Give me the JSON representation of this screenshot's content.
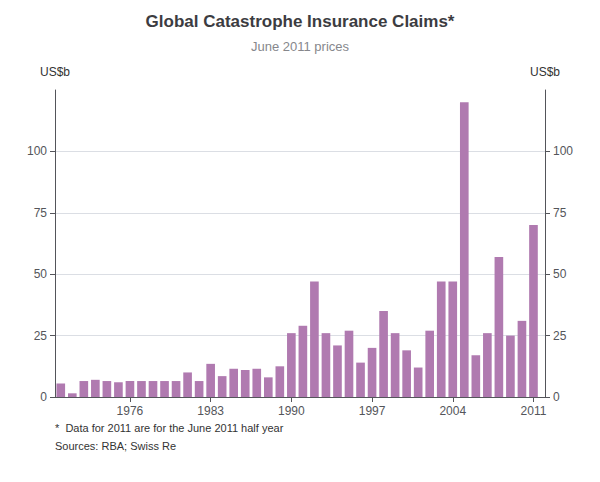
{
  "chart_data": {
    "type": "bar",
    "title": "Global Catastrophe Insurance Claims*",
    "subtitle": "June 2011 prices",
    "ylabel": "US$b",
    "y2label": "US$b",
    "annotations": [
      "*  Data for 2011 are for the June 2011 half year",
      "Sources: RBA; Swiss Re"
    ],
    "x": [
      1970,
      1971,
      1972,
      1973,
      1974,
      1975,
      1976,
      1977,
      1978,
      1979,
      1980,
      1981,
      1982,
      1983,
      1984,
      1985,
      1986,
      1987,
      1988,
      1989,
      1990,
      1991,
      1992,
      1993,
      1994,
      1995,
      1996,
      1997,
      1998,
      1999,
      2000,
      2001,
      2002,
      2003,
      2004,
      2005,
      2006,
      2007,
      2008,
      2009,
      2010,
      2011
    ],
    "values": [
      5.5,
      1.5,
      6.5,
      7.0,
      6.5,
      6.0,
      6.5,
      6.5,
      6.5,
      6.5,
      6.5,
      10.0,
      6.5,
      13.5,
      8.5,
      11.5,
      11.0,
      11.5,
      8.0,
      12.5,
      26.0,
      29.0,
      47.0,
      26.0,
      21.0,
      27.0,
      14.0,
      20.0,
      35.0,
      26.0,
      19.0,
      12.0,
      27.0,
      47.0,
      47.0,
      120.0,
      17.0,
      26.0,
      57.0,
      25.0,
      31.0,
      70.0
    ],
    "color": "#b07ab0",
    "xlim": [
      1969.5,
      2012.0
    ],
    "xticks": [
      1976,
      1983,
      1990,
      1997,
      2004,
      2011
    ],
    "ylim": [
      0,
      125
    ],
    "yticks": [
      0,
      25,
      50,
      75,
      100
    ],
    "y2lim": [
      0,
      125
    ],
    "y2ticks": [
      0,
      25,
      50,
      75,
      100
    ],
    "grid": true
  }
}
